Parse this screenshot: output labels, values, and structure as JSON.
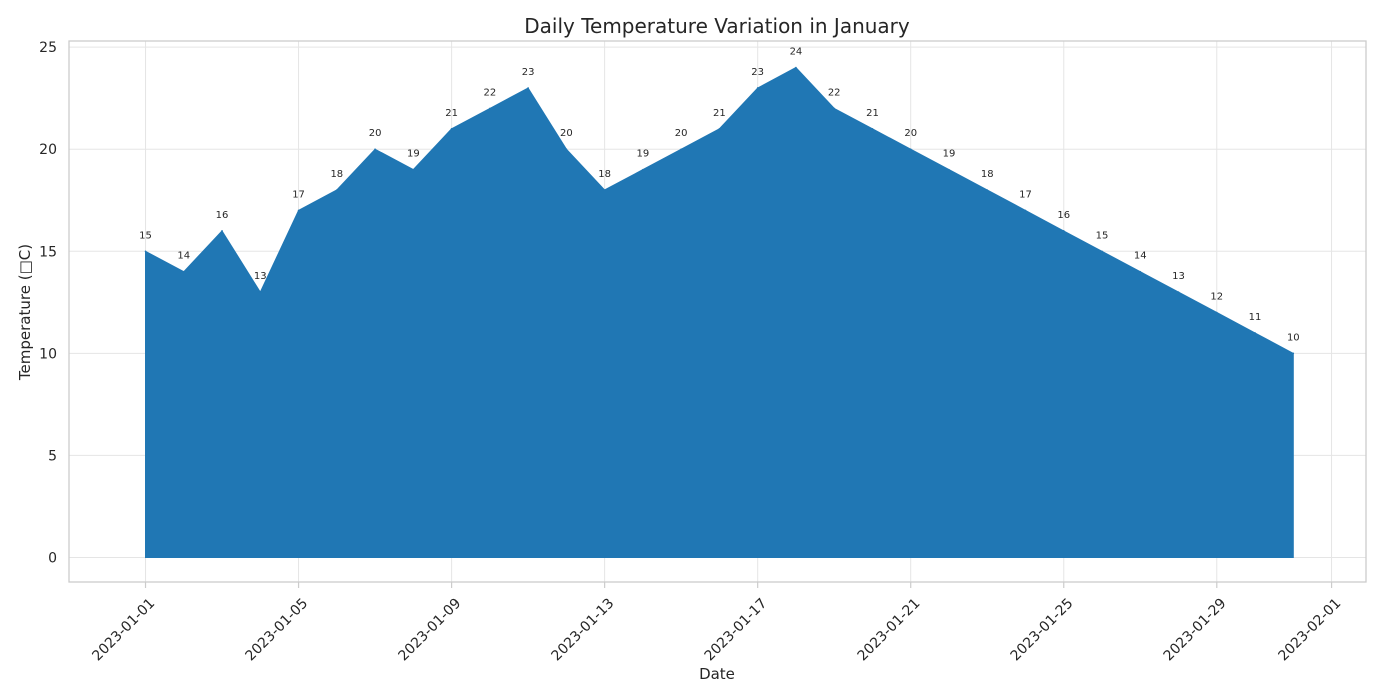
{
  "chart_data": {
    "type": "area",
    "title": "Daily Temperature Variation in January",
    "xlabel": "Date",
    "ylabel": "Temperature (□C)",
    "x": [
      "2023-01-01",
      "2023-01-02",
      "2023-01-03",
      "2023-01-04",
      "2023-01-05",
      "2023-01-06",
      "2023-01-07",
      "2023-01-08",
      "2023-01-09",
      "2023-01-10",
      "2023-01-11",
      "2023-01-12",
      "2023-01-13",
      "2023-01-14",
      "2023-01-15",
      "2023-01-16",
      "2023-01-17",
      "2023-01-18",
      "2023-01-19",
      "2023-01-20",
      "2023-01-21",
      "2023-01-22",
      "2023-01-23",
      "2023-01-24",
      "2023-01-25",
      "2023-01-26",
      "2023-01-27",
      "2023-01-28",
      "2023-01-29",
      "2023-01-30",
      "2023-01-31"
    ],
    "values": [
      15,
      14,
      16,
      13,
      17,
      18,
      20,
      19,
      21,
      22,
      23,
      20,
      18,
      19,
      20,
      21,
      23,
      24,
      22,
      21,
      20,
      19,
      18,
      17,
      16,
      15,
      14,
      13,
      12,
      11,
      10
    ],
    "x_ticks": [
      "2023-01-01",
      "2023-01-05",
      "2023-01-09",
      "2023-01-13",
      "2023-01-17",
      "2023-01-21",
      "2023-01-25",
      "2023-01-29",
      "2023-02-01"
    ],
    "y_ticks": [
      0,
      5,
      10,
      15,
      20,
      25
    ],
    "xlim": [
      "2022-12-30",
      "2023-02-01"
    ],
    "ylim": [
      -1.2,
      25.3
    ],
    "fill_color": "#2077b4",
    "grid": true,
    "data_labels": true
  }
}
